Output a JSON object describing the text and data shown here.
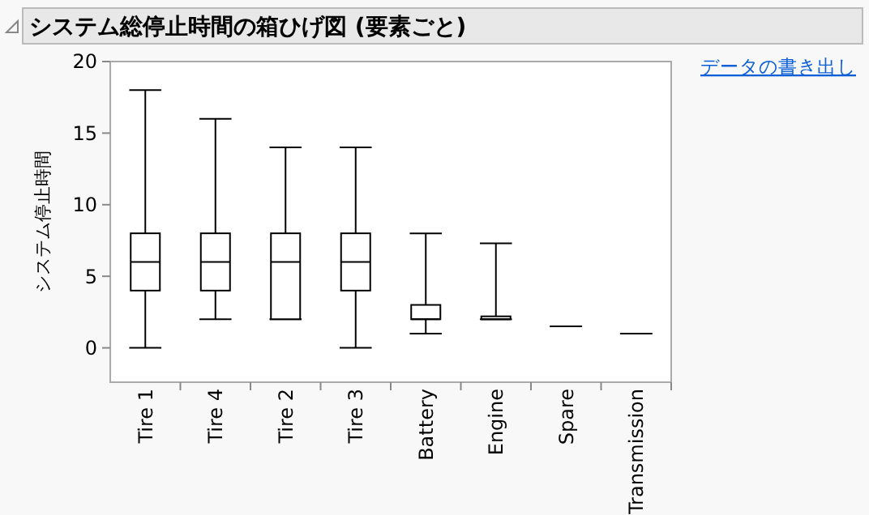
{
  "chart_data": {
    "type": "box",
    "title": "システム総停止時間の箱ひげ図 (要素ごと)",
    "ylabel": "システム停止時間",
    "annotations": [
      "データの書き出し"
    ],
    "categories": [
      "Tire 1",
      "Tire 4",
      "Tire 2",
      "Tire 3",
      "Battery",
      "Engine",
      "Spare",
      "Transmission"
    ],
    "boxes": [
      {
        "low": 0,
        "q1": 4,
        "median": 6,
        "q3": 8,
        "high": 18
      },
      {
        "low": 2,
        "q1": 4,
        "median": 6,
        "q3": 8,
        "high": 16
      },
      {
        "low": 2,
        "q1": 2,
        "median": 6,
        "q3": 8,
        "high": 14
      },
      {
        "low": 0,
        "q1": 4,
        "median": 6,
        "q3": 8,
        "high": 14
      },
      {
        "low": 1,
        "q1": 2,
        "median": 2,
        "q3": 3,
        "high": 8
      },
      {
        "low": 2,
        "q1": 2,
        "median": 2,
        "q3": 2.2,
        "high": 7.3
      },
      {
        "low": 1.5,
        "q1": 1.5,
        "median": 1.5,
        "q3": 1.5,
        "high": 1.5
      },
      {
        "low": 1,
        "q1": 1,
        "median": 1,
        "q3": 1,
        "high": 1
      }
    ],
    "color": "#000000",
    "ylim": [
      -2.4,
      20
    ],
    "yticks": [
      0,
      5,
      10,
      15,
      20
    ],
    "grid": false
  }
}
